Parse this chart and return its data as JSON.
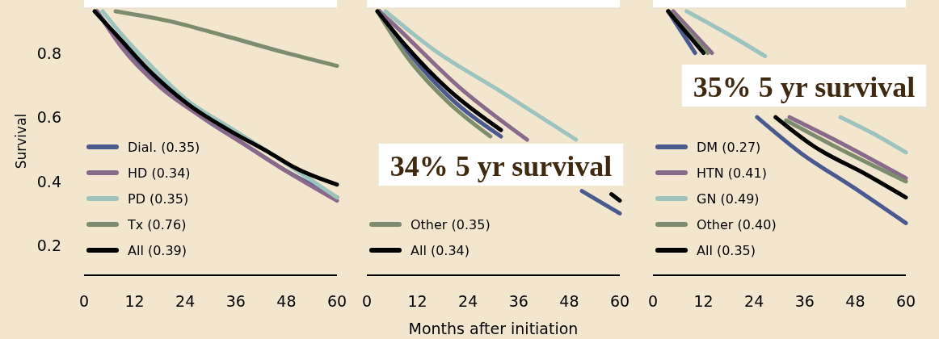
{
  "chart_data": [
    {
      "type": "line",
      "ylabel": "Survival",
      "xlim": [
        0,
        60
      ],
      "xticks": [
        0,
        12,
        24,
        36,
        48,
        60
      ],
      "ylim": [
        0.11,
        0.94
      ],
      "yticks": [
        0.2,
        0.4,
        0.6,
        0.8
      ],
      "legend": "bottom left",
      "line_style": "solid",
      "series": [
        {
          "name": "Dial. (0.35)",
          "color": "#4a5a8f",
          "x": [
            3,
            8.8,
            18.4,
            28,
            37.5,
            47,
            60
          ],
          "values": [
            0.93,
            0.83,
            0.7,
            0.6,
            0.52,
            0.44,
            0.35
          ]
        },
        {
          "name": "HD (0.34)",
          "color": "#8a6a8a",
          "x": [
            3.1,
            8.8,
            18.4,
            28,
            37.5,
            47,
            60
          ],
          "values": [
            0.93,
            0.82,
            0.69,
            0.6,
            0.52,
            0.44,
            0.34
          ]
        },
        {
          "name": "PD (0.35)",
          "color": "#9cc3bd",
          "x": [
            4.4,
            8.8,
            15.1,
            24.7,
            34.3,
            43.9,
            60
          ],
          "values": [
            0.93,
            0.86,
            0.77,
            0.65,
            0.57,
            0.49,
            0.35
          ]
        },
        {
          "name": "Tx (0.76)",
          "color": "#7d8c6e",
          "x": [
            7.5,
            20,
            34.3,
            48,
            60
          ],
          "values": [
            0.93,
            0.9,
            0.85,
            0.8,
            0.76
          ]
        },
        {
          "name": "All (0.39)",
          "color": "#000000",
          "x": [
            2.5,
            8.8,
            15.1,
            24.7,
            34.3,
            43.9,
            50.4,
            60
          ],
          "values": [
            0.93,
            0.84,
            0.75,
            0.64,
            0.56,
            0.49,
            0.44,
            0.39
          ]
        }
      ]
    },
    {
      "type": "line",
      "xlabel": "Months after initiation",
      "xlim": [
        0,
        60
      ],
      "xticks": [
        0,
        12,
        24,
        36,
        48,
        60
      ],
      "ylim": [
        0.11,
        0.94
      ],
      "tick_labels": "x",
      "legend": "bottom left",
      "line_style": "solid",
      "annotations": [
        "34% 5 yr survival"
      ],
      "series": [
        {
          "color": "#4a5a8f",
          "x": [
            3,
            9.4,
            19,
            31.8,
            40,
            51,
            60
          ],
          "values": [
            0.93,
            0.81,
            0.67,
            0.54,
            null,
            0.37,
            0.3
          ]
        },
        {
          "color": "#8a6a8a",
          "x": [
            3,
            6.3,
            22.2,
            38
          ],
          "values": [
            0.93,
            0.89,
            0.69,
            0.53
          ]
        },
        {
          "color": "#9cc3bd",
          "x": [
            4.4,
            15.9,
            31.8,
            49.6
          ],
          "values": [
            0.93,
            0.81,
            0.68,
            0.53
          ]
        },
        {
          "name": "Other (0.35)",
          "color": "#7d8c6e",
          "x": [
            2.5,
            9.4,
            19,
            29.3
          ],
          "values": [
            0.93,
            0.79,
            0.65,
            0.54
          ]
        },
        {
          "name": "All (0.34)",
          "color": "#000000",
          "x": [
            2.5,
            9.4,
            19,
            31.8,
            40,
            58,
            60
          ],
          "values": [
            0.93,
            0.82,
            0.69,
            0.56,
            null,
            0.36,
            0.34
          ]
        }
      ]
    },
    {
      "type": "line",
      "xlim": [
        0,
        60
      ],
      "xticks": [
        0,
        12,
        24,
        36,
        48,
        60
      ],
      "ylim": [
        0.11,
        0.94
      ],
      "tick_labels": "x",
      "legend": "bottom left",
      "line_style": "solid",
      "annotations": [
        "35% 5 yr survival"
      ],
      "series": [
        {
          "name": "DM (0.27)",
          "color": "#4a5a8f",
          "x": [
            3.6,
            10,
            18,
            24.7,
            34.9,
            47.7,
            60
          ],
          "values": [
            0.93,
            0.8,
            null,
            0.6,
            0.49,
            0.38,
            0.27
          ]
        },
        {
          "name": "HTN (0.41)",
          "color": "#8a6a8a",
          "x": [
            4.8,
            14,
            24,
            32.4,
            44.5,
            60
          ],
          "values": [
            0.93,
            0.8,
            null,
            0.6,
            0.52,
            0.41
          ]
        },
        {
          "name": "GN (0.49)",
          "color": "#9cc3bd",
          "x": [
            8,
            19,
            26.6,
            36,
            44.5,
            52.1,
            60
          ],
          "values": [
            0.93,
            0.85,
            0.79,
            null,
            0.6,
            0.55,
            0.49
          ]
        },
        {
          "name": "Other (0.40)",
          "color": "#7d8c6e",
          "x": [
            3.8,
            13,
            24,
            31.6,
            44.5,
            60
          ],
          "values": [
            0.93,
            0.8,
            null,
            0.59,
            0.5,
            0.4
          ]
        },
        {
          "name": "All (0.35)",
          "color": "#000000",
          "x": [
            3.6,
            12,
            20,
            29.1,
            38.1,
            50.8,
            60
          ],
          "values": [
            0.93,
            0.8,
            null,
            0.6,
            0.51,
            0.42,
            0.35
          ]
        }
      ]
    }
  ]
}
